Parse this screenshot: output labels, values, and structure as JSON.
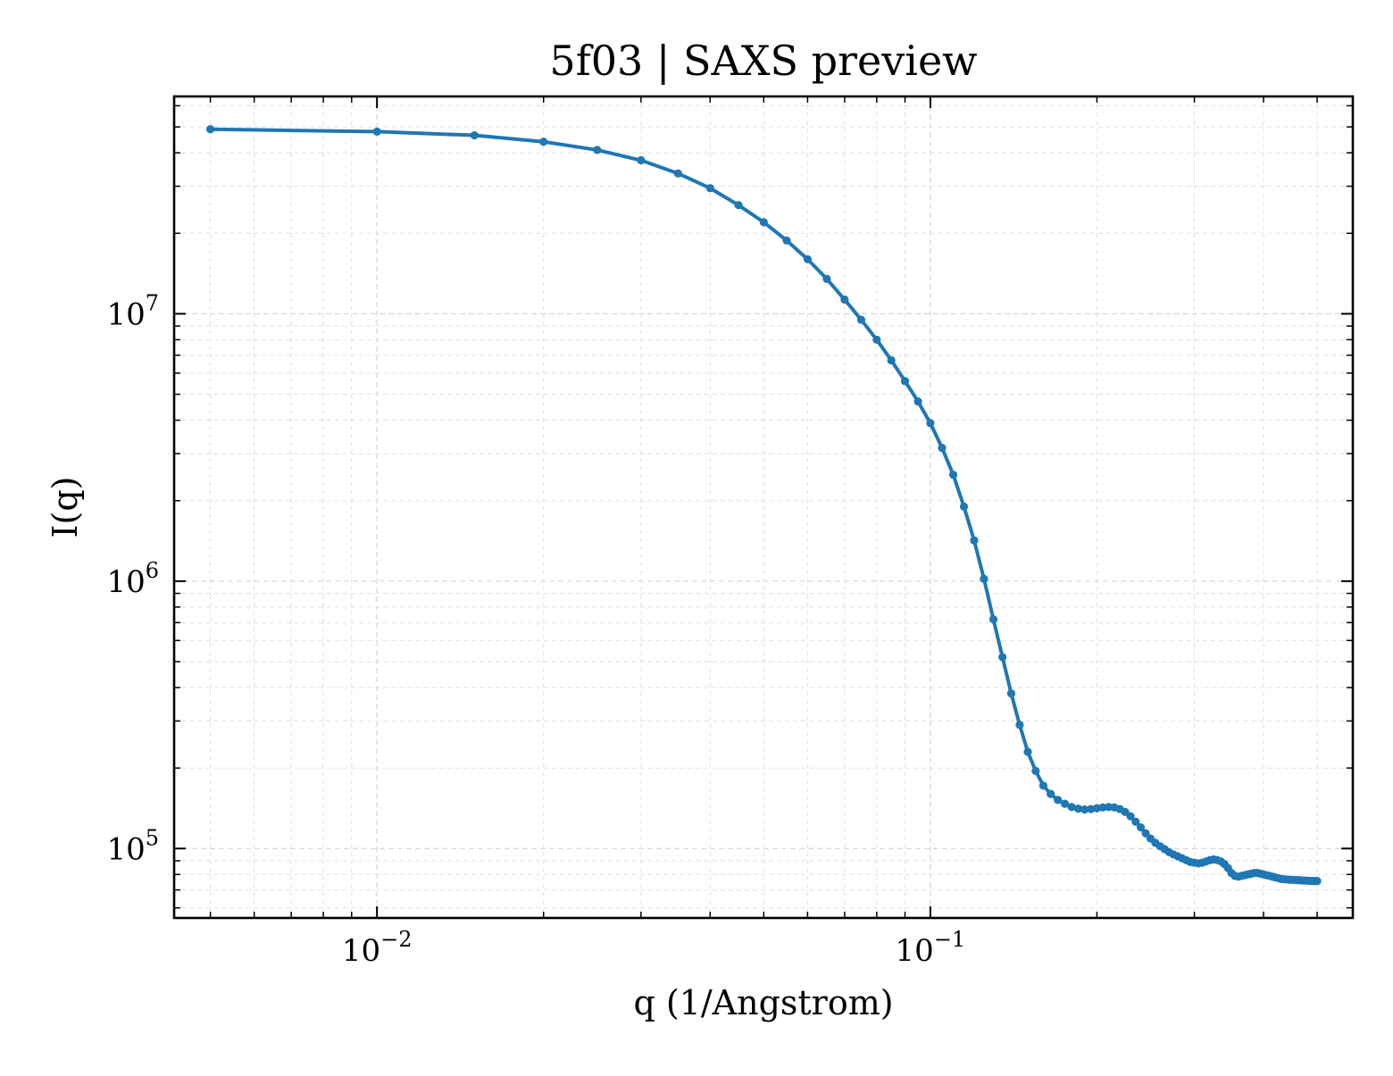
{
  "chart_data": {
    "type": "line",
    "title": "5f03 | SAXS preview",
    "xlabel": "q (1/Angstrom)",
    "ylabel": "I(q)",
    "xscale": "log",
    "yscale": "log",
    "xlim": [
      0.0043,
      0.58
    ],
    "ylim": [
      55000,
      65000000
    ],
    "x_ticks": [
      {
        "value": 0.01,
        "base": "10",
        "exp": "−2"
      },
      {
        "value": 0.1,
        "base": "10",
        "exp": "−1"
      }
    ],
    "y_ticks": [
      {
        "value": 100000,
        "base": "10",
        "exp": "5"
      },
      {
        "value": 1000000,
        "base": "10",
        "exp": "6"
      },
      {
        "value": 10000000,
        "base": "10",
        "exp": "7"
      }
    ],
    "grid": true,
    "color": "#1f77b4",
    "series": [
      {
        "x": [
          0.005,
          0.01,
          0.015,
          0.02,
          0.025,
          0.03,
          0.035,
          0.04,
          0.045,
          0.05,
          0.055,
          0.06,
          0.065,
          0.07,
          0.075,
          0.08,
          0.085,
          0.09,
          0.095,
          0.1,
          0.105,
          0.11,
          0.115,
          0.12,
          0.125,
          0.13,
          0.135,
          0.14,
          0.145,
          0.15,
          0.155,
          0.16,
          0.165,
          0.17,
          0.175,
          0.18,
          0.185,
          0.19,
          0.195,
          0.2,
          0.205,
          0.21,
          0.215,
          0.22,
          0.225,
          0.23,
          0.235,
          0.24,
          0.245,
          0.25,
          0.255,
          0.26,
          0.265,
          0.27,
          0.275,
          0.28,
          0.285,
          0.29,
          0.295,
          0.3,
          0.305,
          0.31,
          0.315,
          0.32,
          0.325,
          0.33,
          0.335,
          0.34,
          0.345,
          0.35,
          0.355,
          0.36,
          0.365,
          0.37,
          0.375,
          0.38,
          0.385,
          0.39,
          0.395,
          0.4,
          0.405,
          0.41,
          0.415,
          0.42,
          0.425,
          0.43,
          0.435,
          0.44,
          0.445,
          0.45,
          0.455,
          0.46,
          0.465,
          0.47,
          0.475,
          0.48,
          0.485,
          0.49,
          0.495,
          0.5
        ],
        "y": [
          49000000,
          48000000,
          46500000,
          44000000,
          41000000,
          37500000,
          33500000,
          29500000,
          25500000,
          22000000,
          18800000,
          16000000,
          13500000,
          11300000,
          9500000,
          8000000,
          6700000,
          5600000,
          4700000,
          3900000,
          3150000,
          2500000,
          1900000,
          1420000,
          1020000,
          720000,
          520000,
          380000,
          290000,
          230000,
          195000,
          172000,
          160000,
          152000,
          147000,
          143000,
          141000,
          140000,
          140500,
          141500,
          142500,
          143000,
          142500,
          140500,
          137000,
          132000,
          126000,
          120000,
          114000,
          109000,
          105000,
          102000,
          99500,
          97000,
          95000,
          93500,
          92000,
          90500,
          89000,
          88500,
          88000,
          88500,
          89500,
          90500,
          91000,
          90500,
          89500,
          87500,
          84500,
          81000,
          79000,
          78500,
          79000,
          79500,
          80000,
          80500,
          81000,
          81000,
          80500,
          80000,
          79500,
          79000,
          78500,
          78000,
          77500,
          77000,
          76800,
          76600,
          76500,
          76400,
          76300,
          76200,
          76100,
          76000,
          75900,
          75800,
          75700,
          75700,
          75600,
          75600
        ]
      }
    ]
  }
}
